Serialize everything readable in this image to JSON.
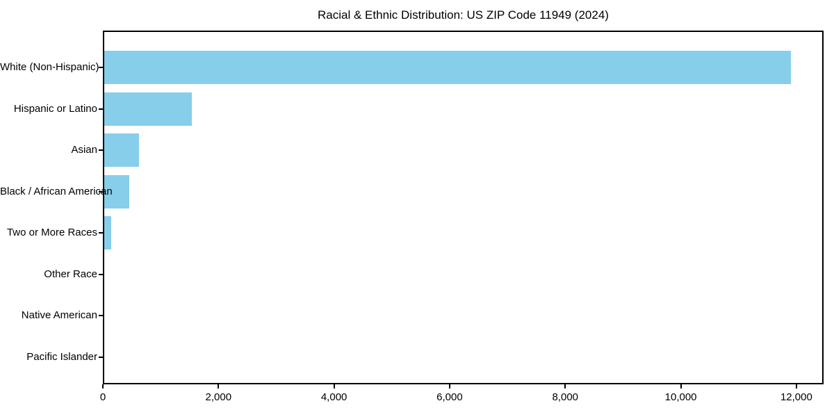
{
  "chart_data": {
    "type": "bar",
    "orientation": "horizontal",
    "title": "Racial & Ethnic Distribution: US ZIP Code 11949 (2024)",
    "categories": [
      "White (Non-Hispanic)",
      "Hispanic or Latino",
      "Asian",
      "Black / African American",
      "Two or More Races",
      "Other Race",
      "Native American",
      "Pacific Islander"
    ],
    "values": [
      11880,
      1520,
      600,
      430,
      120,
      0,
      0,
      0
    ],
    "xlabel": "",
    "ylabel": "",
    "xlim": [
      0,
      12470
    ],
    "x_ticks": [
      0,
      2000,
      4000,
      6000,
      8000,
      10000,
      12000
    ],
    "x_tick_labels": [
      "0",
      "2,000",
      "4,000",
      "6,000",
      "8,000",
      "10,000",
      "12,000"
    ],
    "bar_color": "#87CEEB",
    "axis_color": "#000000",
    "background_color": "#ffffff",
    "grid": false,
    "legend_position": "none"
  }
}
